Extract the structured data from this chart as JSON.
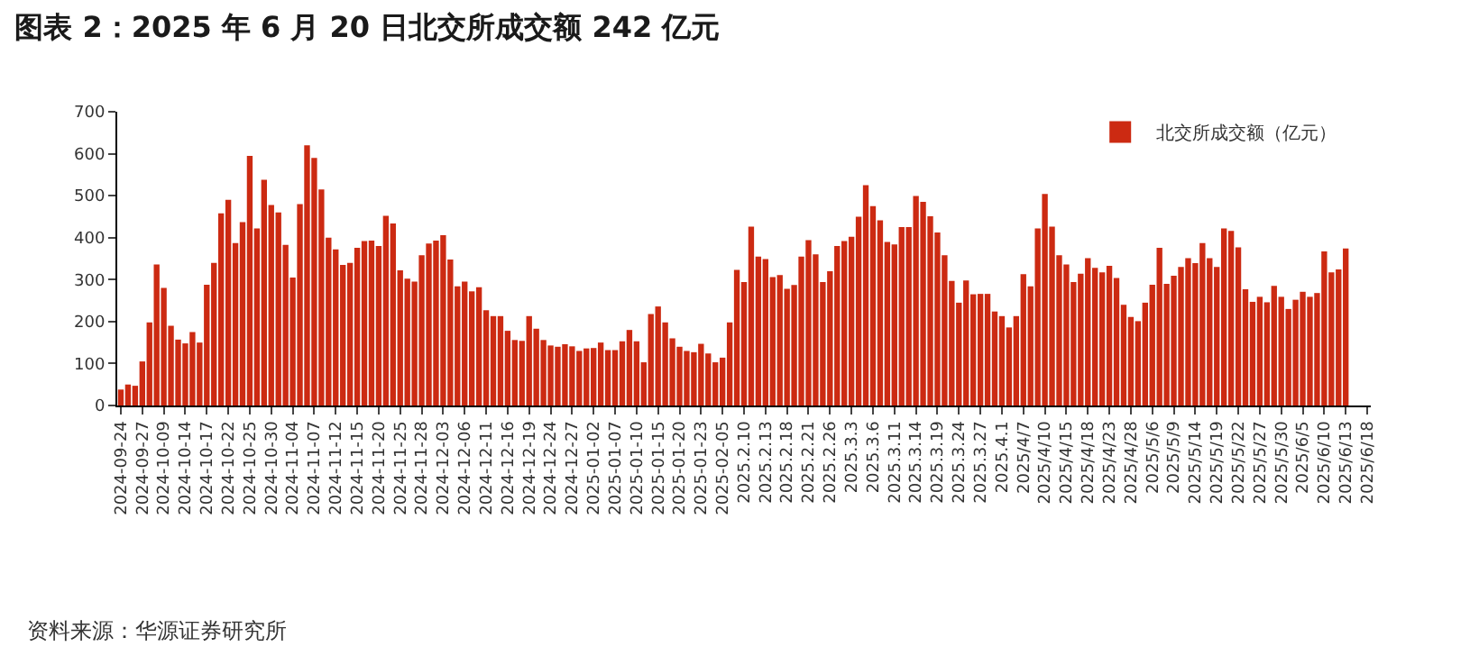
{
  "chart_data": {
    "type": "bar",
    "title": "图表 2：2025 年 6 月 20 日北交所成交额 242 亿元",
    "annotations": [
      "资料来源：华源证券研究所"
    ],
    "categories": [
      "2024-09-24",
      null,
      null,
      "2024-09-27",
      null,
      null,
      "2024-10-09",
      null,
      null,
      "2024-10-14",
      null,
      null,
      "2024-10-17",
      null,
      null,
      "2024-10-22",
      null,
      null,
      "2024-10-25",
      null,
      null,
      "2024-10-30",
      null,
      null,
      "2024-11-04",
      null,
      null,
      "2024-11-07",
      null,
      null,
      "2024-11-12",
      null,
      null,
      "2024-11-15",
      null,
      null,
      "2024-11-20",
      null,
      null,
      "2024-11-25",
      null,
      null,
      "2024-11-28",
      null,
      null,
      "2024-12-03",
      null,
      null,
      "2024-12-06",
      null,
      null,
      "2024-12-11",
      null,
      null,
      "2024-12-16",
      null,
      null,
      "2024-12-19",
      null,
      null,
      "2024-12-24",
      null,
      null,
      "2024-12-27",
      null,
      null,
      "2025-01-02",
      null,
      null,
      "2025-01-07",
      null,
      null,
      "2025-01-10",
      null,
      null,
      "2025-01-15",
      null,
      null,
      "2025-01-20",
      null,
      null,
      "2025-01-23",
      null,
      null,
      "2025-02-05",
      null,
      null,
      "2025.2.10",
      null,
      null,
      "2025.2.13",
      null,
      null,
      "2025.2.18",
      null,
      null,
      "2025.2.21",
      null,
      null,
      "2025.2.26",
      null,
      null,
      "2025.3.3",
      null,
      null,
      "2025.3.6",
      null,
      null,
      "2025.3.11",
      null,
      null,
      "2025.3.14",
      null,
      null,
      "2025.3.19",
      null,
      null,
      "2025.3.24",
      null,
      null,
      "2025.3.27",
      null,
      null,
      "2025.4.1",
      null,
      null,
      "2025/4/7",
      null,
      null,
      "2025/4/10",
      null,
      null,
      "2025/4/15",
      null,
      null,
      "2025/4/18",
      null,
      null,
      "2025/4/23",
      null,
      null,
      "2025/4/28",
      null,
      null,
      "2025/5/6",
      null,
      null,
      "2025/5/9",
      null,
      null,
      "2025/5/14",
      null,
      null,
      "2025/5/19",
      null,
      null,
      "2025/5/22",
      null,
      null,
      "2025/5/27",
      null,
      null,
      "2025/5/30",
      null,
      null,
      "2025/6/5",
      null,
      null,
      "2025/6/10",
      null,
      null,
      "2025/6/13",
      null,
      null,
      "2025/6/18"
    ],
    "series": [
      {
        "name": "北交所成交额（亿元）",
        "color": "#cc2a12",
        "values": [
          38,
          50,
          47,
          105,
          198,
          336,
          280,
          190,
          157,
          148,
          175,
          150,
          288,
          340,
          458,
          490,
          387,
          437,
          595,
          422,
          538,
          478,
          460,
          383,
          305,
          480,
          620,
          590,
          515,
          400,
          372,
          335,
          340,
          376,
          392,
          393,
          380,
          452,
          434,
          322,
          302,
          295,
          358,
          386,
          393,
          406,
          348,
          284,
          295,
          272,
          282,
          227,
          213,
          213,
          178,
          156,
          154,
          213,
          183,
          156,
          143,
          140,
          146,
          141,
          130,
          136,
          137,
          150,
          132,
          132,
          153,
          180,
          153,
          103,
          218,
          236,
          198,
          160,
          140,
          130,
          127,
          147,
          124,
          103,
          114,
          198,
          323,
          294,
          426,
          355,
          349,
          306,
          311,
          278,
          287,
          355,
          394,
          360,
          294,
          320,
          380,
          392,
          402,
          450,
          525,
          475,
          441,
          390,
          384,
          425,
          425,
          499,
          485,
          451,
          412,
          358,
          297,
          245,
          298,
          265,
          266,
          266,
          224,
          213,
          186,
          213,
          313,
          284,
          422,
          504,
          426,
          358,
          336,
          294,
          314,
          351,
          328,
          317,
          333,
          304,
          240,
          211,
          201,
          245,
          288,
          376,
          290,
          309,
          330,
          351,
          339,
          387,
          351,
          330,
          422,
          416,
          377,
          277,
          247,
          259,
          246,
          285,
          259,
          230,
          252,
          271,
          259,
          268,
          367,
          317,
          324,
          374,
          null,
          null,
          null
        ]
      }
    ],
    "ylim": [
      0,
      700
    ],
    "yticks": [
      0,
      100,
      200,
      300,
      400,
      500,
      600,
      700
    ],
    "legend": "top right"
  }
}
